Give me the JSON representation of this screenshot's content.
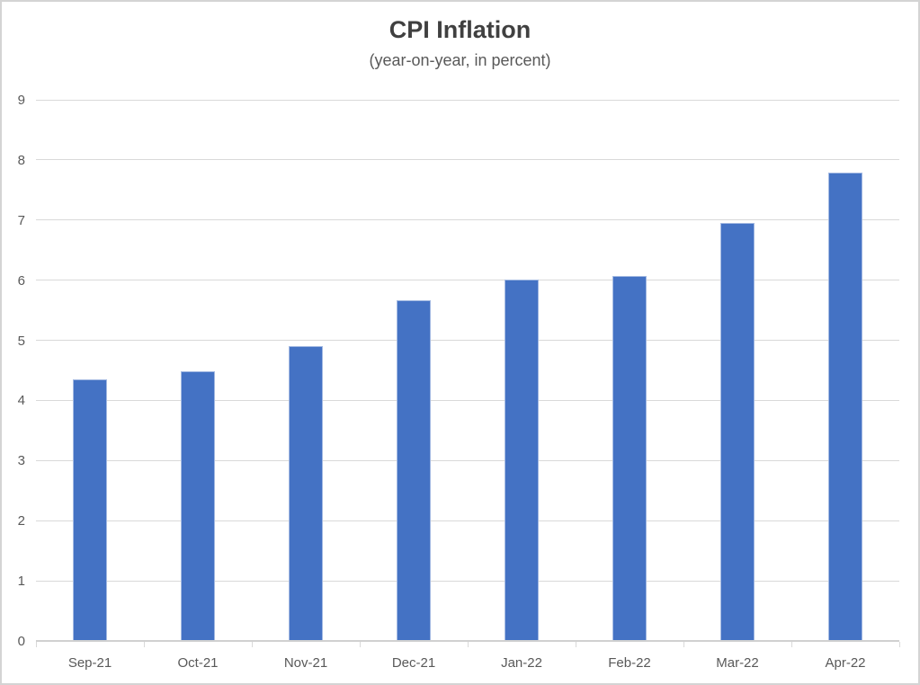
{
  "chart_data": {
    "type": "bar",
    "title": "CPI Inflation",
    "subtitle": "(year-on-year, in percent)",
    "categories": [
      "Sep-21",
      "Oct-21",
      "Nov-21",
      "Dec-21",
      "Jan-22",
      "Feb-22",
      "Mar-22",
      "Apr-22"
    ],
    "values": [
      4.35,
      4.48,
      4.91,
      5.66,
      6.01,
      6.07,
      6.95,
      7.79
    ],
    "xlabel": "",
    "ylabel": "",
    "ylim": [
      0,
      9
    ],
    "ytick_step": 1,
    "ytick_labels": [
      "0",
      "1",
      "2",
      "3",
      "4",
      "5",
      "6",
      "7",
      "8",
      "9"
    ],
    "grid": "horizontal-major",
    "legend": "none",
    "colors": {
      "bar_fill": "#4472C4",
      "bar_edge": "#A3B9E2",
      "gridline": "#D9D9D9",
      "axis_line": "#D0D0D0",
      "tick_mark": "#D9D9D9",
      "axis_text": "#595959",
      "title_text": "#404040",
      "subtitle_text": "#595959",
      "frame": "#D4D4D4",
      "background": "#FFFFFF"
    }
  }
}
